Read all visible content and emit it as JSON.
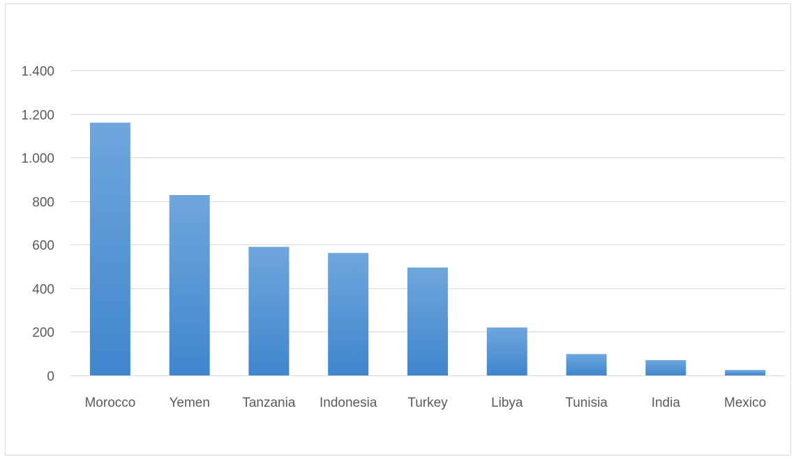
{
  "chart_data": {
    "type": "bar",
    "title": "",
    "xlabel": "",
    "ylabel": "",
    "categories": [
      "Morocco",
      "Yemen",
      "Tanzania",
      "Indonesia",
      "Turkey",
      "Libya",
      "Tunisia",
      "India",
      "Mexico"
    ],
    "values": [
      1160,
      828,
      590,
      562,
      495,
      220,
      98,
      70,
      25
    ],
    "ylim": [
      0,
      1400
    ],
    "yticks": [
      0,
      200,
      400,
      600,
      800,
      1000,
      1200,
      1400
    ],
    "ytick_labels": [
      "0",
      "200",
      "400",
      "600",
      "800",
      "1.000",
      "1.200",
      "1.400"
    ],
    "grid": true,
    "legend": "none",
    "colors": {
      "bar_top": "#6fa6dc",
      "bar_bottom": "#3f86cd",
      "grid": "#d9d9d9",
      "text": "#595959"
    }
  }
}
